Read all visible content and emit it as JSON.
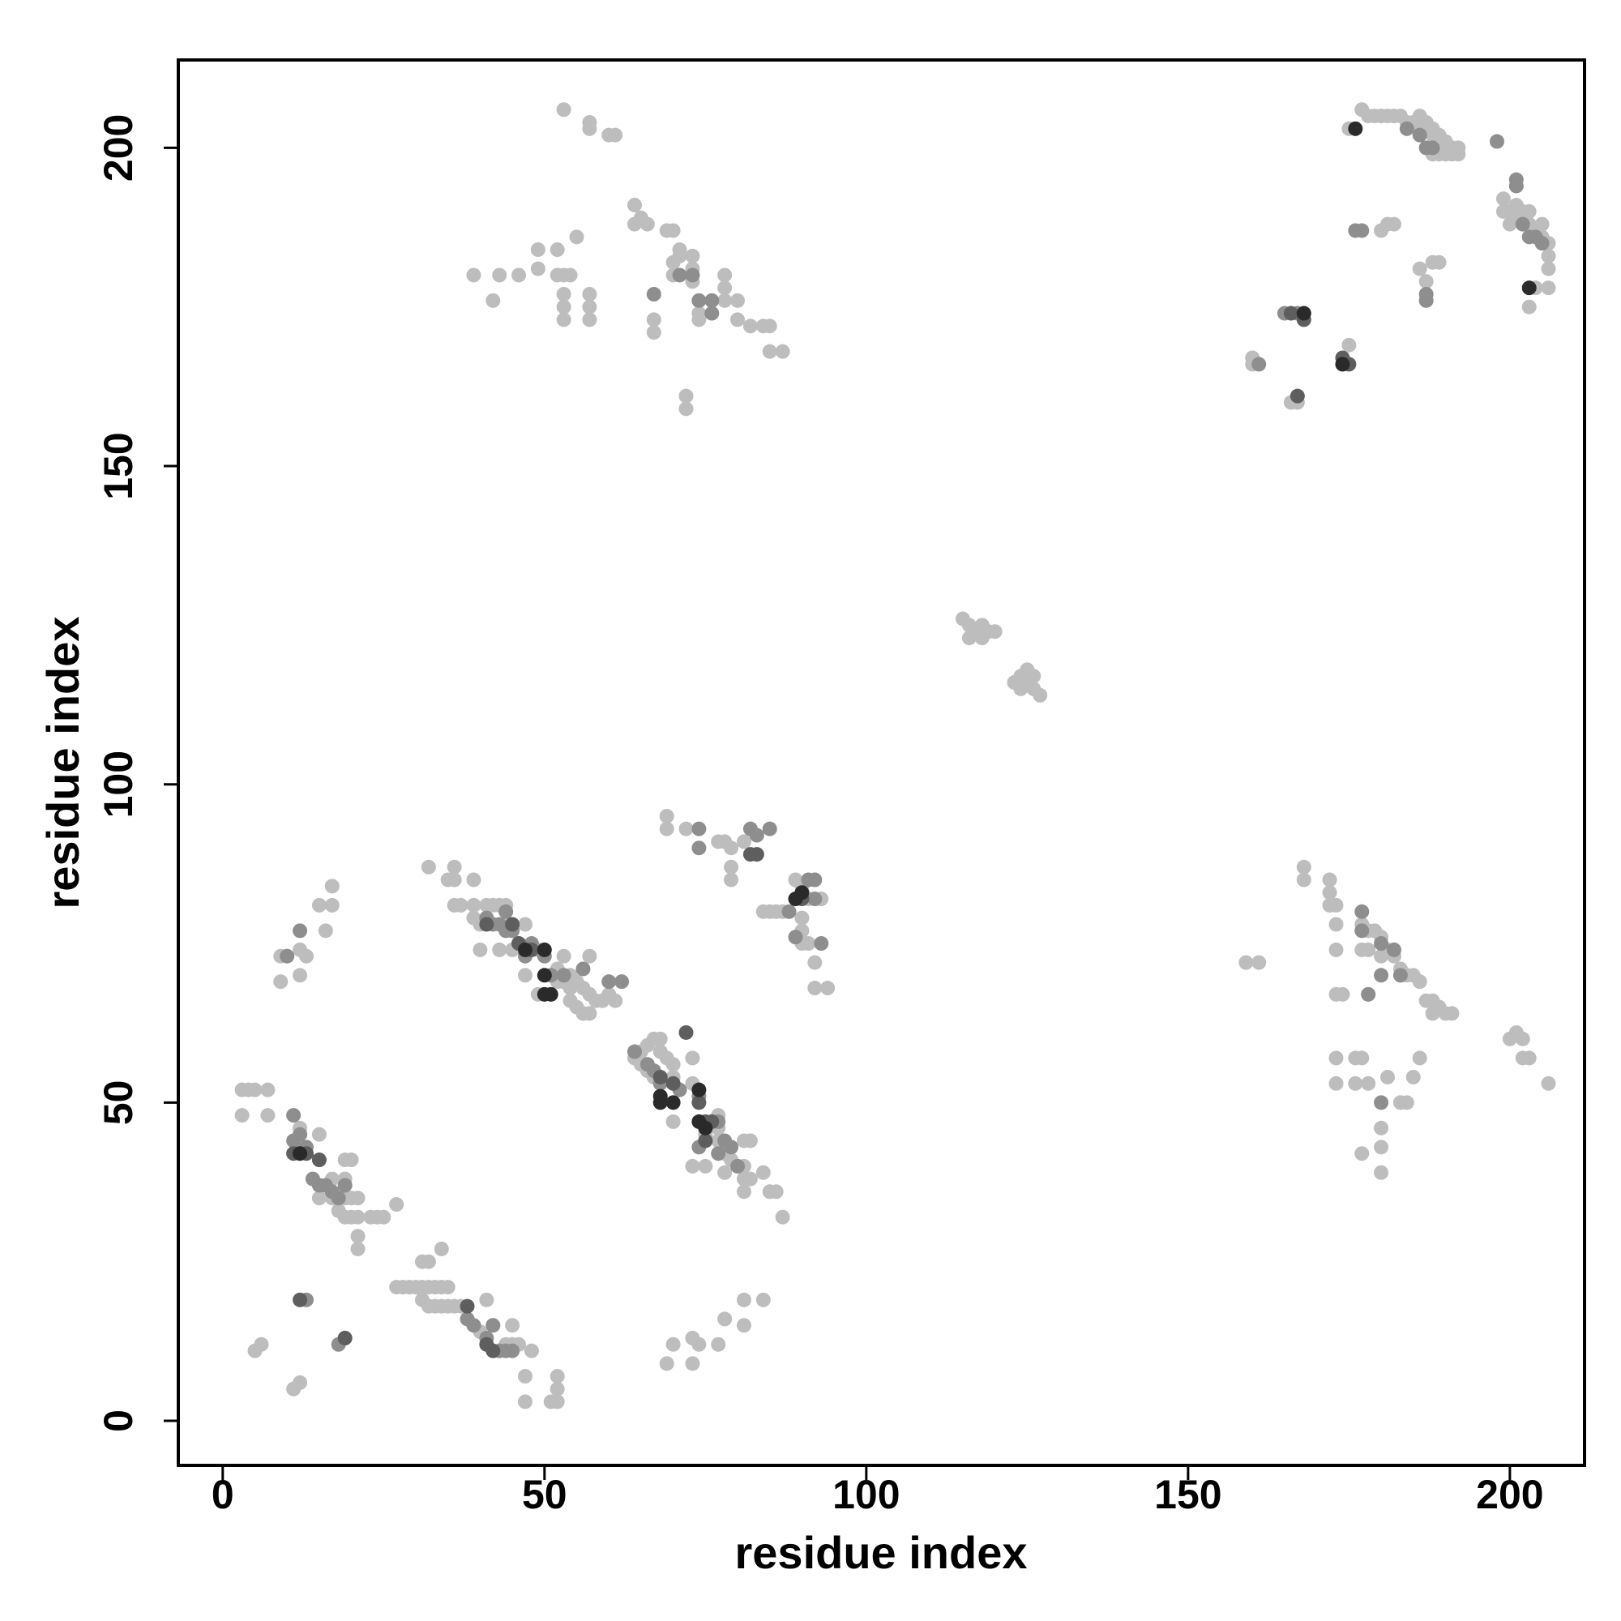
{
  "chart_data": {
    "type": "scatter",
    "xlabel": "residue index",
    "ylabel": "residue index",
    "xlim": [
      -6.9,
      211.6
    ],
    "ylim": [
      -7,
      213.8
    ],
    "xticks": [
      0,
      50,
      100,
      150,
      200
    ],
    "yticks": [
      0,
      50,
      100,
      150,
      200
    ],
    "series": [
      {
        "color": "#bdbdbd",
        "x": [
          53,
          57,
          57,
          60,
          61,
          64,
          64,
          65,
          66,
          69,
          70,
          71,
          70,
          55,
          49,
          49,
          52,
          52,
          53,
          54,
          39,
          43,
          46,
          42,
          53,
          53,
          57,
          57,
          53,
          57,
          70,
          71,
          73,
          73,
          73,
          74,
          78,
          78,
          78,
          80,
          74,
          74,
          80,
          82,
          84,
          85,
          85,
          87,
          72,
          72,
          67,
          67,
          177,
          178,
          179,
          180,
          181,
          182,
          183,
          184,
          185,
          186,
          187,
          188,
          189,
          190,
          191,
          192,
          186,
          187,
          188,
          175,
          188,
          189,
          190,
          191,
          192,
          199,
          200,
          201,
          202,
          203,
          204,
          205,
          206,
          206,
          206,
          206,
          204,
          203,
          199,
          200,
          201,
          202,
          203,
          205,
          180,
          181,
          182,
          186,
          187,
          188,
          189,
          168,
          166,
          167,
          175,
          160,
          160,
          115,
          116,
          116,
          117,
          118,
          118,
          119,
          120,
          123,
          124,
          125,
          125,
          126,
          127,
          124,
          126,
          32,
          36,
          35,
          36,
          39,
          36,
          37,
          39,
          41,
          42,
          43,
          44,
          39,
          40,
          44,
          47,
          40,
          43,
          45,
          49,
          53,
          57,
          52,
          54,
          55,
          56,
          57,
          58,
          59,
          60,
          61,
          54,
          55,
          56,
          57,
          47,
          49,
          52,
          53,
          54,
          69,
          69,
          72,
          77,
          78,
          79,
          81,
          79,
          79,
          84,
          85,
          86,
          87,
          89,
          90,
          91,
          90,
          90,
          90,
          91,
          92,
          92,
          94,
          93,
          17,
          17,
          15,
          16,
          9,
          12,
          13,
          12,
          9,
          64,
          65,
          66,
          67,
          65,
          66,
          67,
          68,
          68,
          69,
          70,
          70,
          73,
          73,
          70,
          75,
          77,
          77,
          77,
          78,
          79,
          81,
          82,
          81,
          81,
          82,
          81,
          84,
          85,
          86,
          87,
          73,
          75,
          78,
          3,
          4,
          5,
          7,
          3,
          7,
          12,
          15,
          12,
          15,
          19,
          20,
          17,
          19,
          15,
          17,
          19,
          20,
          21,
          18,
          19,
          20,
          21,
          23,
          24,
          25,
          27,
          21,
          21,
          27,
          28,
          29,
          30,
          31,
          32,
          33,
          34,
          35,
          31,
          32,
          33,
          34,
          35,
          36,
          37,
          31,
          32,
          34,
          41,
          42,
          45,
          44,
          45,
          46,
          48,
          40,
          5,
          6,
          11,
          12,
          47,
          52,
          47,
          51,
          52,
          52,
          70,
          69,
          73,
          74,
          77,
          78,
          81,
          81,
          84,
          73,
          159,
          161,
          168,
          168,
          172,
          172,
          172,
          173,
          177,
          178,
          179,
          180,
          181,
          182,
          180,
          177,
          178,
          183,
          184,
          185,
          186,
          187,
          188,
          189,
          190,
          191,
          188,
          173,
          174,
          173,
          173,
          178,
          173,
          173,
          176,
          177,
          176,
          178,
          177,
          181,
          183,
          184,
          185,
          180,
          180,
          180,
          186,
          200,
          201,
          202,
          202,
          203,
          206
        ],
        "values": [
          206,
          204,
          203,
          202,
          202,
          191,
          188,
          189,
          188,
          187,
          187,
          184,
          182,
          186,
          184,
          181,
          184,
          180,
          180,
          180,
          180,
          180,
          180,
          176,
          177,
          175,
          177,
          175,
          173,
          173,
          180,
          183,
          183,
          181,
          179,
          176,
          180,
          178,
          176,
          176,
          174,
          173,
          173,
          172,
          172,
          172,
          168,
          168,
          161,
          159,
          171,
          173,
          206,
          205,
          205,
          205,
          205,
          205,
          205,
          204,
          204,
          203,
          203,
          202,
          202,
          201,
          200,
          200,
          205,
          204,
          203,
          203,
          199,
          199,
          199,
          199,
          199,
          192,
          190,
          189,
          188,
          188,
          187,
          186,
          185,
          183,
          181,
          178,
          178,
          175,
          190,
          188,
          191,
          190,
          190,
          188,
          187,
          188,
          188,
          181,
          179,
          182,
          182,
          174,
          160,
          160,
          169,
          166,
          167,
          126,
          125,
          123,
          124,
          123,
          125,
          124,
          124,
          116,
          117,
          118,
          116,
          115,
          114,
          115,
          117,
          87,
          87,
          85,
          85,
          85,
          81,
          81,
          81,
          81,
          81,
          81,
          81,
          79,
          78,
          78,
          78,
          74,
          74,
          74,
          74,
          73,
          73,
          71,
          70,
          69,
          68,
          67,
          66,
          66,
          67,
          66,
          66,
          65,
          64,
          64,
          70,
          67,
          69,
          69,
          68,
          95,
          93,
          93,
          91,
          91,
          90,
          91,
          87,
          85,
          80,
          80,
          80,
          80,
          85,
          84,
          82,
          79,
          77,
          75,
          75,
          72,
          68,
          68,
          82,
          84,
          81,
          81,
          77,
          73,
          74,
          73,
          70,
          69,
          57,
          56,
          55,
          54,
          58,
          59,
          60,
          60,
          58,
          57,
          56,
          54,
          57,
          53,
          47,
          45,
          46,
          48,
          44,
          42,
          41,
          44,
          44,
          40,
          38,
          38,
          36,
          39,
          36,
          36,
          32,
          40,
          40,
          39,
          52,
          52,
          52,
          52,
          48,
          48,
          46,
          45,
          43,
          41,
          41,
          41,
          38,
          38,
          35,
          35,
          35,
          35,
          35,
          33,
          32,
          32,
          32,
          32,
          32,
          32,
          34,
          29,
          27,
          21,
          21,
          21,
          21,
          21,
          21,
          21,
          21,
          21,
          19,
          18,
          18,
          18,
          18,
          18,
          18,
          25,
          25,
          27,
          19,
          15,
          15,
          12,
          12,
          12,
          11,
          14,
          11,
          12,
          5,
          6,
          7,
          7,
          3,
          3,
          3,
          5,
          12,
          9,
          13,
          12,
          12,
          16,
          19,
          15,
          19,
          9,
          72,
          72,
          87,
          85,
          85,
          83,
          81,
          81,
          78,
          77,
          77,
          76,
          74,
          73,
          73,
          74,
          74,
          71,
          70,
          70,
          69,
          66,
          66,
          65,
          64,
          64,
          64,
          67,
          67,
          74,
          78,
          67,
          57,
          53,
          57,
          57,
          53,
          53,
          42,
          54,
          50,
          50,
          54,
          46,
          43,
          39,
          57,
          60,
          61,
          60,
          57,
          57,
          53
        ]
      },
      {
        "color": "#8e8e8e",
        "x": [
          67,
          71,
          73,
          74,
          76,
          76,
          176,
          177,
          201,
          187,
          187,
          165,
          167,
          184,
          186,
          187,
          188,
          198,
          201,
          202,
          203,
          204,
          205,
          161,
          41,
          42,
          43,
          44,
          44,
          45,
          46,
          47,
          48,
          50,
          51,
          53,
          56,
          60,
          62,
          74,
          74,
          82,
          83,
          85,
          91,
          92,
          92,
          88,
          89,
          93,
          10,
          12,
          11,
          11,
          12,
          13,
          14,
          15,
          16,
          17,
          19,
          18,
          64,
          66,
          67,
          68,
          71,
          74,
          75,
          77,
          78,
          79,
          80,
          77,
          74,
          13,
          18,
          19,
          38,
          39,
          41,
          43,
          44,
          45,
          42,
          177,
          177,
          180,
          182,
          183,
          180,
          178,
          180
        ],
        "values": [
          177,
          180,
          180,
          176,
          174,
          176,
          187,
          187,
          194,
          177,
          176,
          174,
          174,
          203,
          202,
          200,
          200,
          201,
          195,
          188,
          186,
          186,
          185,
          166,
          79,
          78,
          78,
          80,
          77,
          77,
          75,
          73,
          75,
          73,
          70,
          70,
          71,
          69,
          69,
          93,
          90,
          93,
          92,
          93,
          85,
          85,
          82,
          80,
          76,
          75,
          73,
          77,
          48,
          44,
          45,
          43,
          38,
          37,
          37,
          36,
          37,
          35,
          58,
          56,
          55,
          53,
          52,
          51,
          46,
          47,
          44,
          43,
          40,
          42,
          43,
          19,
          12,
          13,
          16,
          15,
          13,
          11,
          11,
          11,
          15,
          80,
          77,
          75,
          74,
          70,
          70,
          67,
          50
        ]
      },
      {
        "color": "#5e5e5e",
        "x": [
          166,
          168,
          174,
          175,
          167,
          41,
          45,
          46,
          48,
          13,
          15,
          11,
          12,
          19,
          41,
          42,
          38,
          82,
          83,
          90,
          72,
          68,
          70,
          74,
          75,
          76,
          75
        ],
        "values": [
          174,
          173,
          167,
          166,
          161,
          78,
          78,
          75,
          74,
          42,
          41,
          42,
          19,
          13,
          12,
          11,
          18,
          89,
          89,
          82,
          61,
          54,
          53,
          50,
          47,
          47,
          44
        ]
      },
      {
        "color": "#2a2a2a",
        "x": [
          47,
          50,
          50,
          50,
          51,
          90,
          89,
          68,
          68,
          70,
          74,
          74,
          75,
          168,
          176,
          203,
          12,
          174
        ],
        "values": [
          74,
          74,
          70,
          67,
          67,
          83,
          82,
          51,
          50,
          50,
          52,
          47,
          46,
          174,
          203,
          178,
          42,
          166
        ]
      }
    ]
  }
}
